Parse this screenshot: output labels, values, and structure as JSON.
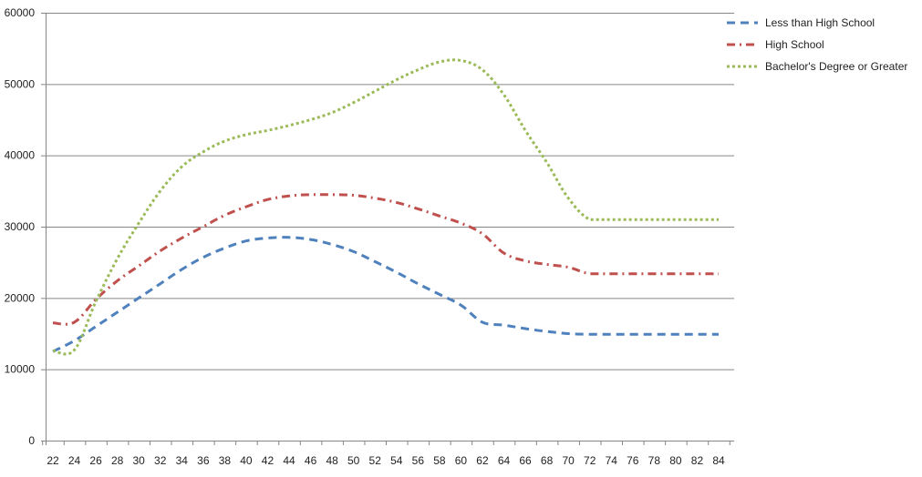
{
  "chart_data": {
    "type": "line",
    "title": "",
    "xlabel": "",
    "ylabel": "",
    "x": [
      22,
      24,
      26,
      28,
      30,
      32,
      34,
      36,
      38,
      40,
      42,
      44,
      46,
      48,
      50,
      52,
      54,
      56,
      58,
      60,
      62,
      64,
      66,
      68,
      70,
      72,
      74,
      76,
      78,
      80,
      82,
      84
    ],
    "ylim": [
      0,
      60000
    ],
    "yticks": [
      0,
      10000,
      20000,
      30000,
      40000,
      50000,
      60000
    ],
    "grid": true,
    "legend_position": "top-right",
    "series": [
      {
        "name": "Less than High School",
        "color": "#4f81bd",
        "dash": "dash",
        "values": [
          12500,
          14000,
          16000,
          18000,
          20000,
          22000,
          24000,
          25700,
          27000,
          28000,
          28400,
          28500,
          28200,
          27500,
          26500,
          25100,
          23600,
          22000,
          20500,
          19000,
          16600,
          16200,
          15700,
          15300,
          15000,
          14900,
          14900,
          14900,
          14900,
          14900,
          14900,
          14900
        ]
      },
      {
        "name": "High School",
        "color": "#c0504d",
        "dash": "dashdot",
        "values": [
          16500,
          16600,
          19800,
          22400,
          24500,
          26600,
          28400,
          30000,
          31600,
          32800,
          33800,
          34300,
          34500,
          34500,
          34400,
          34000,
          33400,
          32500,
          31500,
          30500,
          29000,
          26300,
          25200,
          24700,
          24300,
          23400,
          23400,
          23400,
          23400,
          23400,
          23400,
          23400
        ]
      },
      {
        "name": "Bachelor's Degree or Greater",
        "color": "#9bbb59",
        "dash": "dot",
        "values": [
          12600,
          12700,
          19500,
          25500,
          30500,
          35000,
          38400,
          40500,
          42000,
          42900,
          43500,
          44200,
          45000,
          46000,
          47400,
          49000,
          50600,
          52000,
          53100,
          53300,
          52000,
          48500,
          43500,
          39000,
          34000,
          31000,
          31000,
          31000,
          31000,
          31000,
          31000,
          31000
        ]
      }
    ]
  },
  "colors": {
    "grid": "#868686",
    "axis": "#868686",
    "background": "#ffffff"
  }
}
